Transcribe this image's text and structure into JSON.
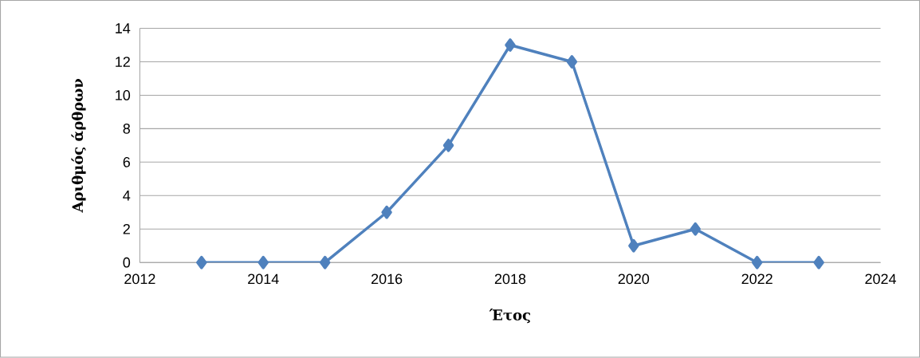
{
  "chart_data": {
    "type": "line",
    "xlabel": "Έτος",
    "ylabel": "Αριθμός άρθρων",
    "x": [
      2013,
      2014,
      2015,
      2016,
      2017,
      2018,
      2019,
      2020,
      2021,
      2022,
      2023
    ],
    "series": [
      {
        "color": "#4f81bd",
        "values": [
          0,
          0,
          0,
          3,
          7,
          13,
          12,
          1,
          2,
          0,
          0
        ]
      }
    ],
    "xlim": [
      2012,
      2024
    ],
    "xticks": [
      2012,
      2014,
      2016,
      2018,
      2020,
      2022,
      2024
    ],
    "ylim": [
      0,
      14
    ],
    "yticks": [
      0,
      2,
      4,
      6,
      8,
      10,
      12,
      14
    ],
    "grid": "y",
    "marker": "diamond",
    "line_style": "solid"
  }
}
